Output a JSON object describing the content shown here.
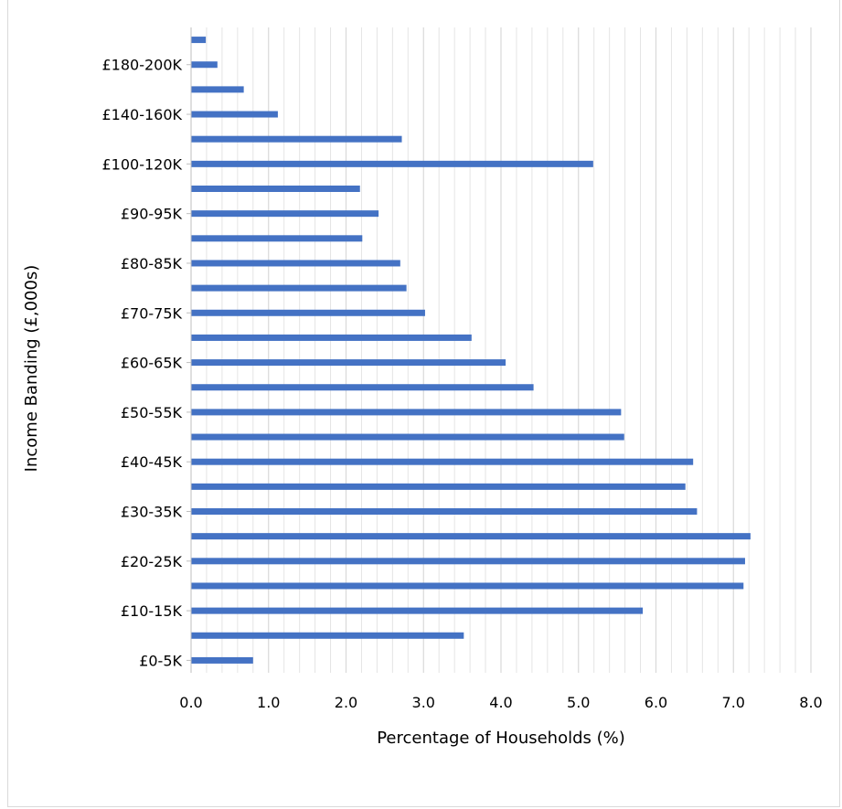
{
  "chart_data": {
    "type": "bar",
    "orientation": "horizontal",
    "title": "",
    "xlabel": "Percentage of Households (%)",
    "ylabel": "Income Banding (£,000s)",
    "xlim": [
      0,
      8
    ],
    "x_ticks": [
      "0.0",
      "1.0",
      "2.0",
      "3.0",
      "4.0",
      "5.0",
      "6.0",
      "7.0",
      "8.0"
    ],
    "grid": true,
    "categories": [
      "£0-5K",
      "",
      "£10-15K",
      "",
      "£20-25K",
      "",
      "£30-35K",
      "",
      "£40-45K",
      "",
      "£50-55K",
      "",
      "£60-65K",
      "",
      "£70-75K",
      "",
      "£80-85K",
      "",
      "£90-95K",
      "",
      "£100-120K",
      "",
      "£140-160K",
      "",
      "£180-200K",
      ""
    ],
    "values": [
      0.8,
      3.52,
      5.83,
      7.13,
      7.15,
      7.22,
      6.53,
      6.38,
      6.48,
      5.59,
      5.55,
      4.42,
      4.06,
      3.62,
      3.02,
      2.78,
      2.7,
      2.21,
      2.42,
      2.18,
      5.19,
      2.72,
      1.12,
      0.68,
      0.34,
      0.19
    ],
    "bar_color": "#4472c4",
    "grid_color": "#d9d9d9"
  }
}
